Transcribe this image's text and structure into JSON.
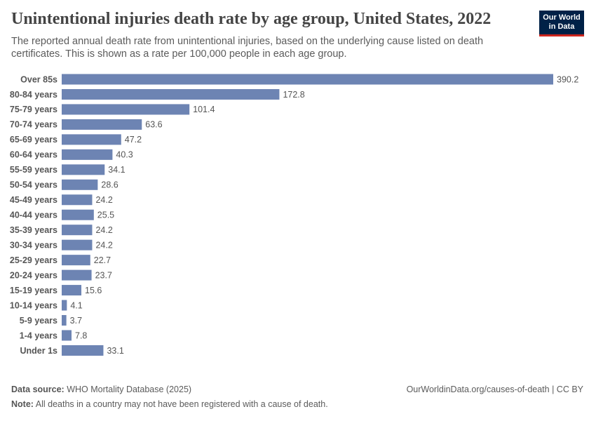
{
  "chart_data": {
    "type": "bar",
    "orientation": "horizontal",
    "title": "Unintentional injuries death rate by age group, United States, 2022",
    "subtitle": "The reported annual death rate from unintentional injuries, based on the underlying cause listed on death certificates. This is shown as a rate per 100,000 people in each age group.",
    "categories": [
      "Over 85s",
      "80-84 years",
      "75-79 years",
      "70-74 years",
      "65-69 years",
      "60-64 years",
      "55-59 years",
      "50-54 years",
      "45-49 years",
      "40-44 years",
      "35-39 years",
      "30-34 years",
      "25-29 years",
      "20-24 years",
      "15-19 years",
      "10-14 years",
      "5-9 years",
      "1-4 years",
      "Under 1s"
    ],
    "values": [
      390.2,
      172.8,
      101.4,
      63.6,
      47.2,
      40.3,
      34.1,
      28.6,
      24.2,
      25.5,
      24.2,
      24.2,
      22.7,
      23.7,
      15.6,
      4.1,
      3.7,
      7.8,
      33.1
    ],
    "color": "#6d84b3",
    "source_label": "Data source:",
    "source": "WHO Mortality Database (2025)",
    "url": "OurWorldinData.org/causes-of-death | CC BY",
    "note_label": "Note:",
    "note": "All deaths in a country may not have been registered with a cause of death.",
    "logo": [
      "Our World",
      "in Data"
    ]
  }
}
